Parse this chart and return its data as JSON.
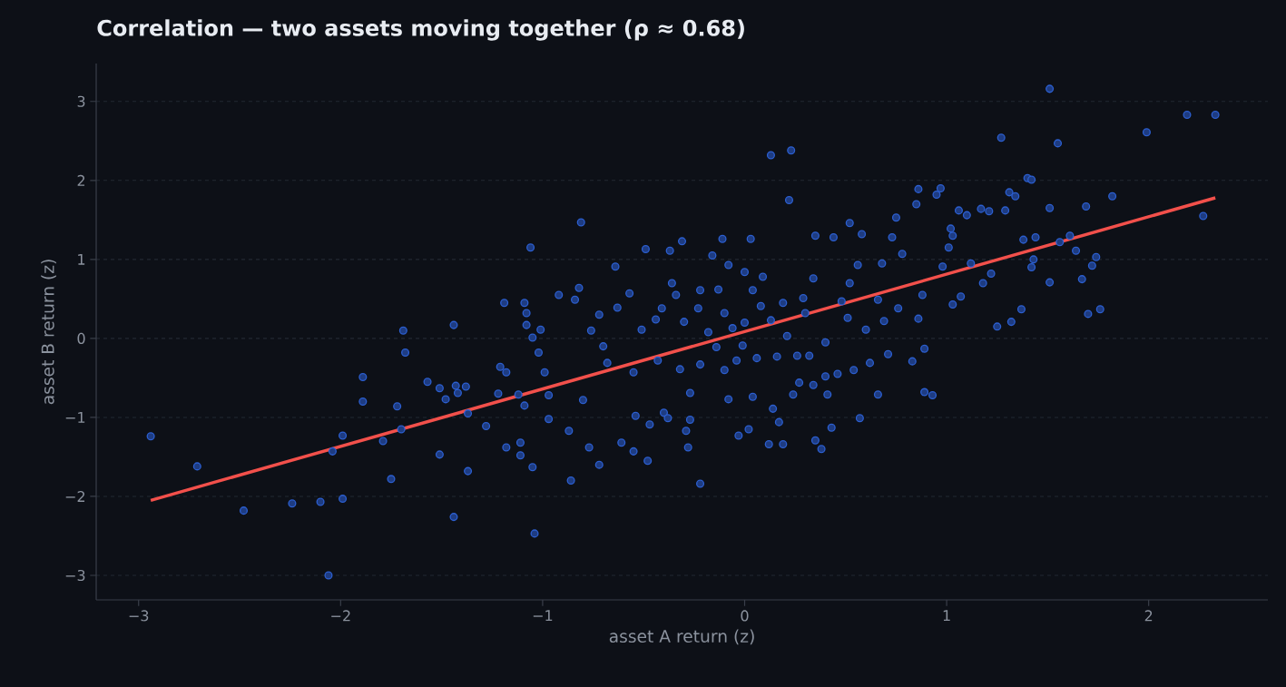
{
  "chart_data": {
    "type": "scatter",
    "title": "Correlation — two assets moving together (ρ ≈ 0.68)",
    "xlabel": "asset A return (z)",
    "ylabel": "asset B return (z)",
    "xlim": [
      -3.21,
      2.59
    ],
    "ylim": [
      -3.31,
      3.48
    ],
    "xticks": [
      {
        "value": -3,
        "label": "−3"
      },
      {
        "value": -2,
        "label": "−2"
      },
      {
        "value": -1,
        "label": "−1"
      },
      0,
      1,
      2
    ],
    "yticks": [
      {
        "value": -3,
        "label": "−3"
      },
      {
        "value": -2,
        "label": "−2"
      },
      {
        "value": -1,
        "label": "−1"
      },
      0,
      1,
      2,
      3
    ],
    "grid": "y",
    "series": [
      {
        "type": "scatter",
        "color": "#2c5fd0",
        "x": [
          -2.94,
          -2.71,
          -2.48,
          -2.24,
          -2.1,
          -2.06,
          -2.04,
          -1.99,
          -1.99,
          -1.89,
          -1.89,
          -1.79,
          -1.75,
          -1.72,
          -1.69,
          -1.68,
          -1.7,
          -1.57,
          -1.51,
          -1.51,
          -1.48,
          -1.44,
          -1.44,
          -1.43,
          -1.42,
          -1.38,
          -1.37,
          -1.37,
          -1.28,
          -1.22,
          -1.21,
          -1.19,
          -1.18,
          -1.18,
          -1.12,
          -1.11,
          -1.11,
          -1.09,
          -1.09,
          -1.08,
          -1.06,
          -1.08,
          -1.05,
          -1.05,
          -1.04,
          -1.02,
          -1.01,
          -0.99,
          -0.97,
          -0.97,
          -0.92,
          -0.87,
          -0.86,
          -0.84,
          -0.82,
          -0.81,
          -0.8,
          -0.76,
          -0.77,
          -0.72,
          -0.7,
          -0.72,
          -0.68,
          -0.64,
          -0.63,
          -0.61,
          -0.57,
          -0.55,
          -0.55,
          -0.54,
          -0.51,
          -0.47,
          -0.49,
          -0.48,
          -0.44,
          -0.43,
          -0.41,
          -0.4,
          -0.38,
          -0.37,
          -0.36,
          -0.34,
          -0.32,
          -0.31,
          -0.3,
          -0.29,
          -0.28,
          -0.27,
          -0.27,
          -0.23,
          -0.22,
          -0.22,
          -0.22,
          -0.18,
          -0.16,
          -0.14,
          -0.13,
          -0.11,
          -0.1,
          -0.1,
          -0.08,
          -0.08,
          -0.06,
          -0.04,
          -0.03,
          -0.01,
          0.0,
          0.0,
          0.02,
          0.03,
          0.04,
          0.04,
          0.06,
          0.08,
          0.09,
          0.12,
          0.13,
          0.13,
          0.14,
          0.16,
          0.17,
          0.19,
          0.19,
          0.21,
          0.22,
          0.23,
          0.24,
          0.26,
          0.27,
          0.29,
          0.3,
          0.32,
          0.34,
          0.34,
          0.35,
          0.35,
          0.38,
          0.4,
          0.4,
          0.41,
          0.43,
          0.44,
          0.46,
          0.48,
          0.51,
          0.52,
          0.52,
          0.54,
          0.56,
          0.57,
          0.58,
          0.6,
          0.62,
          0.66,
          0.66,
          0.68,
          0.69,
          0.71,
          0.73,
          0.75,
          0.76,
          0.78,
          0.83,
          0.85,
          0.86,
          0.86,
          0.88,
          0.89,
          0.89,
          0.93,
          0.95,
          0.97,
          0.98,
          1.01,
          1.02,
          1.03,
          1.03,
          1.06,
          1.07,
          1.1,
          1.12,
          1.17,
          1.18,
          1.21,
          1.22,
          1.25,
          1.27,
          1.29,
          1.31,
          1.32,
          1.34,
          1.37,
          1.38,
          1.4,
          1.42,
          1.43,
          1.42,
          1.44,
          1.51,
          1.51,
          1.51,
          1.55,
          1.56,
          1.61,
          1.64,
          1.67,
          1.69,
          1.7,
          1.72,
          1.74,
          1.76,
          1.82,
          1.99,
          2.19,
          2.27,
          2.33
        ],
        "values": [
          -1.24,
          -1.62,
          -2.18,
          -2.09,
          -2.07,
          -3.0,
          -1.43,
          -1.23,
          -2.03,
          -0.49,
          -0.8,
          -1.3,
          -1.78,
          -0.86,
          0.1,
          -0.18,
          -1.15,
          -0.55,
          -0.63,
          -1.47,
          -0.77,
          0.17,
          -2.26,
          -0.6,
          -0.69,
          -0.61,
          -1.68,
          -0.95,
          -1.11,
          -0.7,
          -0.36,
          0.45,
          -0.43,
          -1.38,
          -0.71,
          -1.48,
          -1.32,
          0.45,
          -0.85,
          0.32,
          1.15,
          0.17,
          0.01,
          -1.63,
          -2.47,
          -0.18,
          0.11,
          -0.43,
          -0.72,
          -1.02,
          0.55,
          -1.17,
          -1.8,
          0.49,
          0.64,
          1.47,
          -0.78,
          0.1,
          -1.38,
          0.3,
          -0.1,
          -1.6,
          -0.31,
          0.91,
          0.39,
          -1.32,
          0.57,
          -0.43,
          -1.43,
          -0.98,
          0.11,
          -1.09,
          1.13,
          -1.55,
          0.24,
          -0.28,
          0.38,
          -0.94,
          -1.01,
          1.11,
          0.7,
          0.55,
          -0.39,
          1.23,
          0.21,
          -1.17,
          -1.38,
          -1.03,
          -0.69,
          0.38,
          0.61,
          -0.33,
          -1.84,
          0.08,
          1.05,
          -0.11,
          0.62,
          1.26,
          -0.4,
          0.32,
          0.93,
          -0.77,
          0.13,
          -0.28,
          -1.23,
          -0.09,
          0.2,
          0.84,
          -1.15,
          1.26,
          0.61,
          -0.74,
          -0.25,
          0.41,
          0.78,
          -1.34,
          2.32,
          0.23,
          -0.89,
          -0.23,
          -1.06,
          -1.34,
          0.45,
          0.03,
          1.75,
          2.38,
          -0.71,
          -0.22,
          -0.56,
          0.51,
          0.32,
          -0.22,
          0.76,
          -0.59,
          1.3,
          -1.29,
          -1.4,
          -0.05,
          -0.48,
          -0.71,
          -1.13,
          1.28,
          -0.45,
          0.47,
          0.26,
          0.7,
          1.46,
          -0.4,
          0.93,
          -1.01,
          1.32,
          0.11,
          -0.31,
          -0.71,
          0.49,
          0.95,
          0.22,
          -0.2,
          1.28,
          1.53,
          0.38,
          1.07,
          -0.29,
          1.7,
          0.25,
          1.89,
          0.55,
          -0.13,
          -0.68,
          -0.72,
          1.82,
          1.9,
          0.91,
          1.15,
          1.39,
          0.43,
          1.3,
          1.62,
          0.53,
          1.56,
          0.95,
          1.64,
          0.7,
          1.61,
          0.82,
          0.15,
          2.54,
          1.62,
          1.85,
          0.21,
          1.8,
          0.37,
          1.25,
          2.03,
          2.01,
          1.0,
          0.9,
          1.28,
          0.71,
          1.65,
          3.16,
          2.47,
          1.22,
          1.3,
          1.11,
          0.75,
          1.67,
          0.31,
          0.92,
          1.03,
          0.37,
          1.8,
          2.61,
          2.83,
          1.55,
          2.83
        ]
      },
      {
        "type": "line",
        "color": "#f2504b",
        "x": [
          -2.94,
          2.33
        ],
        "values": [
          -2.05,
          1.78
        ]
      }
    ]
  }
}
